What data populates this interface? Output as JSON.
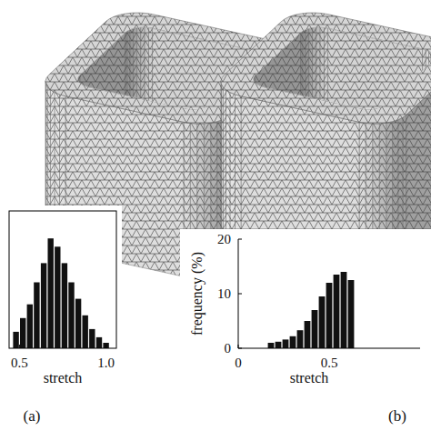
{
  "chart_data": [
    {
      "type": "histogram",
      "annotations": [
        "(a)"
      ],
      "x_label": "stretch",
      "bins": [
        0.46,
        0.5,
        0.54,
        0.58,
        0.62,
        0.66,
        0.7,
        0.74,
        0.78,
        0.82,
        0.86,
        0.9,
        0.94,
        0.98,
        1.02
      ],
      "counts": [
        3,
        5.5,
        8,
        12,
        15.5,
        20,
        18.5,
        15.5,
        12,
        9,
        6,
        3.5,
        2,
        1
      ],
      "xlim": [
        0.44,
        1.06
      ],
      "ylim": [
        0,
        25
      ],
      "xticks": [
        0.5,
        {
          "value": 1.0,
          "label": "1.0"
        }
      ],
      "tick_labels": "x",
      "color": "#111111"
    },
    {
      "type": "histogram",
      "annotations": [
        "(b)"
      ],
      "x_label": "stretch",
      "y_label": "frequency (%)",
      "bins": [
        0.16,
        0.2,
        0.24,
        0.28,
        0.32,
        0.36,
        0.4,
        0.44,
        0.48,
        0.52,
        0.56,
        0.6,
        0.64
      ],
      "counts": [
        1,
        1.2,
        1.6,
        2.2,
        3.3,
        5,
        7,
        9.5,
        12,
        13.5,
        14,
        12.5
      ],
      "xlim": [
        0,
        1
      ],
      "ylim": [
        0,
        20
      ],
      "xticks": [
        0,
        0.5
      ],
      "yticks": [
        0,
        10,
        20
      ],
      "color": "#111111"
    }
  ]
}
